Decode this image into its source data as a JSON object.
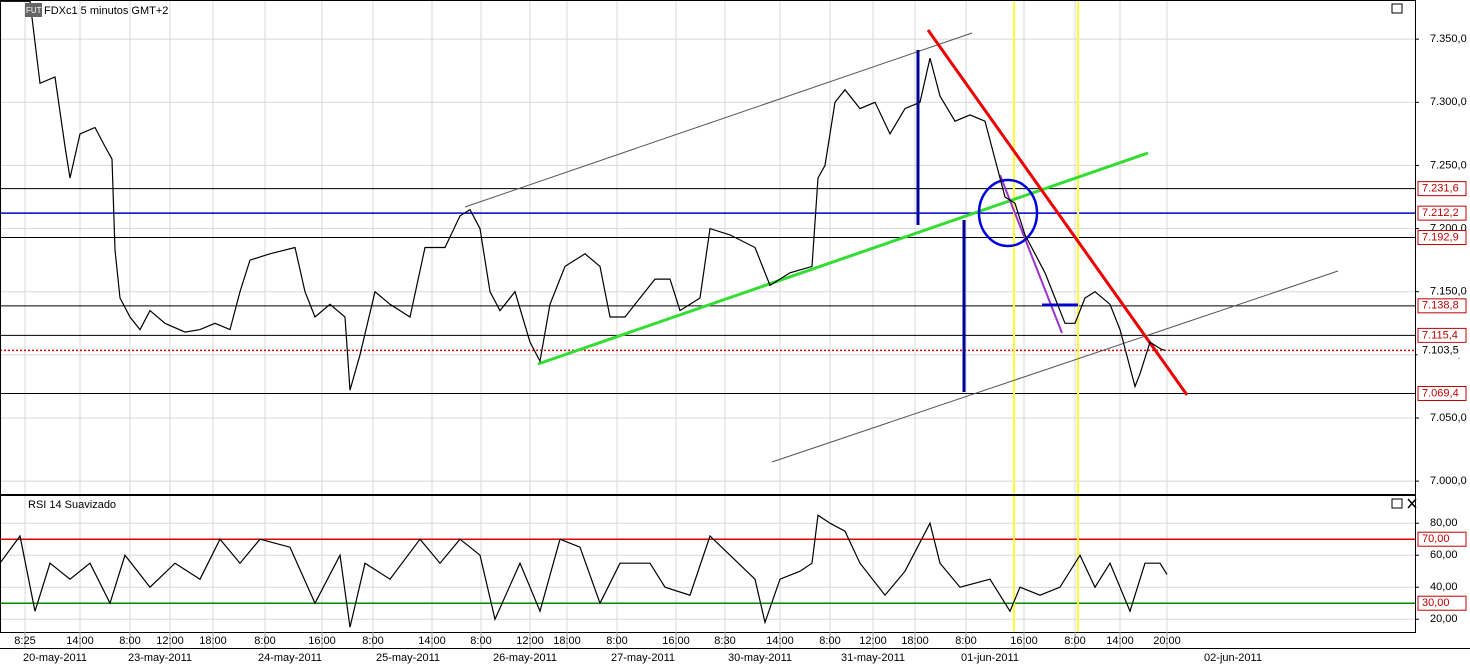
{
  "chart_data": [
    {
      "type": "line",
      "title": "FDXc1 5 minutos GMT+2",
      "icon_label": "FUT",
      "color": "#000000",
      "grid": true,
      "xlim": [
        0,
        1415
      ],
      "ylim": [
        6989,
        7381
      ],
      "yticks": [
        {
          "value": 7000,
          "label": "7.000,0"
        },
        {
          "value": 7050,
          "label": "7.050,0"
        },
        {
          "value": 7100,
          "label": "7.100,0"
        },
        {
          "value": 7150,
          "label": "7.150,0"
        },
        {
          "value": 7200,
          "label": "7.200,0"
        },
        {
          "value": 7250,
          "label": "7.250,0"
        },
        {
          "value": 7300,
          "label": "7.300,0"
        },
        {
          "value": 7350,
          "label": "7.350,0"
        }
      ],
      "levels": [
        {
          "value": 7231.6,
          "label": "7.231,6",
          "color": "#000000",
          "style": "solid"
        },
        {
          "value": 7212.2,
          "label": "7.212,2",
          "color": "#0000cc",
          "style": "solid"
        },
        {
          "value": 7192.9,
          "label": "7.192,9",
          "color": "#000000",
          "style": "solid"
        },
        {
          "value": 7138.8,
          "label": "7.138,8",
          "color": "#000000",
          "style": "solid"
        },
        {
          "value": 7115.4,
          "label": "7.115,4",
          "color": "#000000",
          "style": "solid"
        },
        {
          "value": 7103.5,
          "label": "7.103,5",
          "color": "#dd0000",
          "style": "dotted"
        },
        {
          "value": 7069.4,
          "label": "7.069,4",
          "color": "#000000",
          "style": "solid"
        }
      ],
      "x": [
        0,
        30,
        40,
        55,
        65,
        70,
        80,
        95,
        105,
        112,
        115,
        120,
        130,
        140,
        150,
        165,
        185,
        200,
        215,
        230,
        240,
        250,
        270,
        295,
        305,
        315,
        330,
        345,
        350,
        360,
        375,
        390,
        410,
        425,
        445,
        460,
        470,
        480,
        490,
        500,
        515,
        530,
        540,
        550,
        565,
        585,
        600,
        610,
        625,
        640,
        655,
        670,
        680,
        700,
        710,
        730,
        755,
        770,
        790,
        812,
        818,
        825,
        835,
        845,
        860,
        875,
        890,
        905,
        920,
        930,
        940,
        955,
        970,
        985,
        995,
        1005,
        1015,
        1025,
        1035,
        1045,
        1055,
        1065,
        1075,
        1085,
        1095,
        1110,
        1120,
        1130,
        1135,
        1140,
        1150,
        1160,
        1165
      ],
      "values": [
        7380,
        7380,
        7315,
        7320,
        7265,
        7240,
        7275,
        7280,
        7265,
        7255,
        7183,
        7145,
        7130,
        7120,
        7135,
        7125,
        7118,
        7120,
        7125,
        7120,
        7150,
        7175,
        7180,
        7185,
        7150,
        7130,
        7140,
        7130,
        7072,
        7100,
        7150,
        7140,
        7130,
        7185,
        7185,
        7210,
        7215,
        7200,
        7150,
        7135,
        7150,
        7110,
        7095,
        7140,
        7170,
        7180,
        7170,
        7130,
        7130,
        7145,
        7160,
        7160,
        7135,
        7145,
        7200,
        7195,
        7185,
        7155,
        7165,
        7170,
        7240,
        7250,
        7300,
        7310,
        7295,
        7300,
        7275,
        7295,
        7300,
        7335,
        7305,
        7285,
        7290,
        7285,
        7255,
        7225,
        7220,
        7195,
        7180,
        7165,
        7145,
        7125,
        7125,
        7145,
        7150,
        7140,
        7120,
        7090,
        7075,
        7085,
        7110,
        7105,
        7103.5
      ]
    },
    {
      "type": "line",
      "title": "RSI 14 Suavizado",
      "color": "#000000",
      "grid": true,
      "xlim": [
        0,
        1415
      ],
      "ylim": [
        12,
        97
      ],
      "yticks": [
        {
          "value": 20,
          "label": "20,00"
        },
        {
          "value": 40,
          "label": "40,00"
        },
        {
          "value": 60,
          "label": "60,00"
        },
        {
          "value": 80,
          "label": "80,00"
        }
      ],
      "levels": [
        {
          "value": 70,
          "label": "70,00",
          "color": "#dd0000",
          "style": "solid"
        },
        {
          "value": 30,
          "label": "30,00",
          "color": "#008800",
          "style": "solid"
        }
      ],
      "xticks": [
        {
          "value": 25,
          "label": "8:25"
        },
        {
          "value": 80,
          "label": "14:00"
        },
        {
          "value": 130,
          "label": "8:00"
        },
        {
          "value": 170,
          "label": "12:00"
        },
        {
          "value": 213,
          "label": "18:00"
        },
        {
          "value": 265,
          "label": "8:00"
        },
        {
          "value": 322,
          "label": "16:00"
        },
        {
          "value": 373,
          "label": "8:00"
        },
        {
          "value": 432,
          "label": "14:00"
        },
        {
          "value": 481,
          "label": "8:00"
        },
        {
          "value": 530,
          "label": "12:00"
        },
        {
          "value": 567,
          "label": "18:00"
        },
        {
          "value": 617,
          "label": "8:00"
        },
        {
          "value": 676,
          "label": "16:00"
        },
        {
          "value": 725,
          "label": "8:30"
        },
        {
          "value": 780,
          "label": "14:00"
        },
        {
          "value": 830,
          "label": "8:00"
        },
        {
          "value": 873,
          "label": "12:00"
        },
        {
          "value": 915,
          "label": "18:00"
        },
        {
          "value": 966,
          "label": "8:00"
        },
        {
          "value": 1024,
          "label": "16:00"
        },
        {
          "value": 1075,
          "label": "8:00"
        },
        {
          "value": 1120,
          "label": "14:00"
        },
        {
          "value": 1167,
          "label": "20:00"
        }
      ],
      "date_ticks": [
        {
          "value": 55,
          "label": "20-may-2011"
        },
        {
          "value": 160,
          "label": "23-may-2011"
        },
        {
          "value": 290,
          "label": "24-may-2011"
        },
        {
          "value": 408,
          "label": "25-may-2011"
        },
        {
          "value": 525,
          "label": "26-may-2011"
        },
        {
          "value": 643,
          "label": "27-may-2011"
        },
        {
          "value": 760,
          "label": "30-may-2011"
        },
        {
          "value": 873,
          "label": "31-may-2011"
        },
        {
          "value": 990,
          "label": "01-jun-2011"
        },
        {
          "value": 1233,
          "label": "02-jun-2011"
        }
      ],
      "x": [
        0,
        20,
        35,
        50,
        70,
        90,
        110,
        125,
        150,
        175,
        200,
        220,
        240,
        260,
        290,
        315,
        340,
        350,
        365,
        390,
        420,
        440,
        460,
        480,
        495,
        520,
        540,
        560,
        580,
        600,
        620,
        650,
        665,
        690,
        710,
        730,
        755,
        765,
        780,
        800,
        812,
        818,
        830,
        845,
        860,
        885,
        905,
        930,
        940,
        960,
        990,
        1010,
        1020,
        1040,
        1060,
        1080,
        1095,
        1110,
        1130,
        1145,
        1160,
        1167
      ],
      "values": [
        55,
        72,
        25,
        55,
        45,
        55,
        30,
        60,
        40,
        55,
        45,
        70,
        55,
        70,
        65,
        30,
        60,
        15,
        55,
        45,
        70,
        55,
        70,
        60,
        20,
        55,
        25,
        70,
        65,
        30,
        55,
        55,
        40,
        35,
        72,
        60,
        45,
        18,
        45,
        50,
        55,
        85,
        80,
        75,
        55,
        35,
        50,
        80,
        55,
        40,
        45,
        25,
        40,
        35,
        40,
        60,
        40,
        55,
        25,
        55,
        55,
        48
      ]
    }
  ]
}
